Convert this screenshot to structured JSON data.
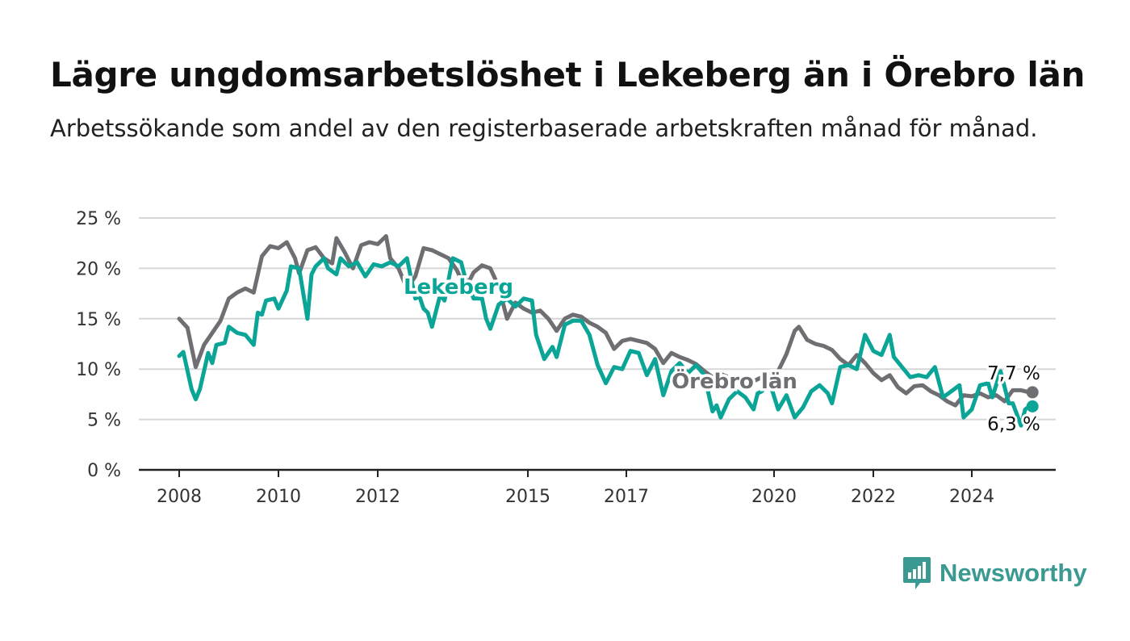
{
  "title": "Lägre ungdomsarbetslöshet i Lekeberg än i Örebro län",
  "subtitle": "Arbetssökande som andel av den registerbaserade arbetskraften månad för månad.",
  "brand": {
    "name": "Newsworthy",
    "icon": "newsworthy-logo-icon",
    "color": "#3a9a92"
  },
  "chart_data": {
    "type": "line",
    "title": "Lägre ungdomsarbetslöshet i Lekeberg än i Örebro län",
    "ylabel": "",
    "ylim": [
      0,
      25
    ],
    "y_ticks": [
      0,
      5,
      10,
      15,
      20,
      25
    ],
    "y_tick_labels": [
      "0 %",
      "5 %",
      "10 %",
      "15 %",
      "20 %",
      "25 %"
    ],
    "x_ticks": [
      "2008",
      "2010",
      "2012",
      "2015",
      "2017",
      "2020",
      "2022",
      "2024"
    ],
    "grid": true,
    "series": [
      {
        "name": "Örebro län",
        "color": "#6e6e73",
        "end_label": "7,7 %",
        "points": [
          [
            "2008-01",
            15.0
          ],
          [
            "2008-03",
            14.1
          ],
          [
            "2008-05",
            10.2
          ],
          [
            "2008-07",
            12.4
          ],
          [
            "2008-09",
            13.6
          ],
          [
            "2008-11",
            14.8
          ],
          [
            "2009-01",
            17.0
          ],
          [
            "2009-03",
            17.6
          ],
          [
            "2009-05",
            18.0
          ],
          [
            "2009-07",
            17.6
          ],
          [
            "2009-09",
            21.2
          ],
          [
            "2009-11",
            22.2
          ],
          [
            "2010-01",
            22.0
          ],
          [
            "2010-03",
            22.6
          ],
          [
            "2010-05",
            21.0
          ],
          [
            "2010-06",
            19.5
          ],
          [
            "2010-08",
            21.8
          ],
          [
            "2010-10",
            22.1
          ],
          [
            "2010-12",
            21.0
          ],
          [
            "2011-02",
            20.5
          ],
          [
            "2011-03",
            23.0
          ],
          [
            "2011-05",
            21.6
          ],
          [
            "2011-07",
            20.0
          ],
          [
            "2011-09",
            22.3
          ],
          [
            "2011-11",
            22.6
          ],
          [
            "2012-01",
            22.4
          ],
          [
            "2012-03",
            23.2
          ],
          [
            "2012-04",
            21.0
          ],
          [
            "2012-06",
            20.0
          ],
          [
            "2012-08",
            18.0
          ],
          [
            "2012-10",
            19.2
          ],
          [
            "2012-12",
            22.0
          ],
          [
            "2013-02",
            21.8
          ],
          [
            "2013-04",
            21.4
          ],
          [
            "2013-06",
            21.0
          ],
          [
            "2013-08",
            19.8
          ],
          [
            "2013-10",
            18.0
          ],
          [
            "2013-12",
            19.6
          ],
          [
            "2014-02",
            20.3
          ],
          [
            "2014-04",
            20.0
          ],
          [
            "2014-06",
            18.2
          ],
          [
            "2014-08",
            15.0
          ],
          [
            "2014-10",
            16.6
          ],
          [
            "2014-12",
            16.0
          ],
          [
            "2015-02",
            15.6
          ],
          [
            "2015-04",
            15.8
          ],
          [
            "2015-06",
            15.0
          ],
          [
            "2015-08",
            13.8
          ],
          [
            "2015-10",
            15.0
          ],
          [
            "2015-12",
            15.4
          ],
          [
            "2016-02",
            15.2
          ],
          [
            "2016-04",
            14.6
          ],
          [
            "2016-06",
            14.2
          ],
          [
            "2016-08",
            13.6
          ],
          [
            "2016-10",
            12.0
          ],
          [
            "2016-12",
            12.8
          ],
          [
            "2017-02",
            13.0
          ],
          [
            "2017-04",
            12.8
          ],
          [
            "2017-06",
            12.6
          ],
          [
            "2017-08",
            12.0
          ],
          [
            "2017-10",
            10.6
          ],
          [
            "2017-12",
            11.6
          ],
          [
            "2018-02",
            11.2
          ],
          [
            "2018-04",
            10.9
          ],
          [
            "2018-06",
            10.5
          ],
          [
            "2018-08",
            9.8
          ],
          [
            "2018-10",
            9.2
          ],
          [
            "2018-12",
            9.5
          ],
          [
            "2019-02",
            9.2
          ],
          [
            "2019-04",
            8.9
          ],
          [
            "2019-06",
            8.6
          ],
          [
            "2019-08",
            8.8
          ],
          [
            "2019-10",
            9.2
          ],
          [
            "2019-12",
            9.4
          ],
          [
            "2020-02",
            9.8
          ],
          [
            "2020-04",
            11.5
          ],
          [
            "2020-06",
            13.8
          ],
          [
            "2020-07",
            14.2
          ],
          [
            "2020-09",
            12.9
          ],
          [
            "2020-11",
            12.5
          ],
          [
            "2021-01",
            12.3
          ],
          [
            "2021-03",
            11.9
          ],
          [
            "2021-05",
            11.0
          ],
          [
            "2021-07",
            10.4
          ],
          [
            "2021-09",
            11.4
          ],
          [
            "2021-11",
            10.6
          ],
          [
            "2022-01",
            9.6
          ],
          [
            "2022-03",
            8.9
          ],
          [
            "2022-05",
            9.4
          ],
          [
            "2022-07",
            8.2
          ],
          [
            "2022-09",
            7.6
          ],
          [
            "2022-11",
            8.3
          ],
          [
            "2023-01",
            8.4
          ],
          [
            "2023-03",
            7.8
          ],
          [
            "2023-05",
            7.4
          ],
          [
            "2023-07",
            6.8
          ],
          [
            "2023-09",
            6.4
          ],
          [
            "2023-11",
            7.4
          ],
          [
            "2024-01",
            7.3
          ],
          [
            "2024-03",
            7.6
          ],
          [
            "2024-05",
            7.2
          ],
          [
            "2024-07",
            7.4
          ],
          [
            "2024-09",
            6.8
          ],
          [
            "2024-11",
            7.9
          ],
          [
            "2025-01",
            7.9
          ],
          [
            "2025-03",
            7.7
          ]
        ]
      },
      {
        "name": "Lekeberg",
        "color": "#0aa597",
        "end_label": "6,3 %",
        "points": [
          [
            "2008-01",
            11.3
          ],
          [
            "2008-02",
            11.7
          ],
          [
            "2008-04",
            8.0
          ],
          [
            "2008-05",
            7.0
          ],
          [
            "2008-06",
            8.0
          ],
          [
            "2008-08",
            11.6
          ],
          [
            "2008-09",
            10.6
          ],
          [
            "2008-10",
            12.4
          ],
          [
            "2008-12",
            12.6
          ],
          [
            "2009-01",
            14.2
          ],
          [
            "2009-03",
            13.6
          ],
          [
            "2009-05",
            13.4
          ],
          [
            "2009-07",
            12.4
          ],
          [
            "2009-08",
            15.6
          ],
          [
            "2009-09",
            15.4
          ],
          [
            "2009-10",
            16.8
          ],
          [
            "2009-12",
            17.0
          ],
          [
            "2010-01",
            16.0
          ],
          [
            "2010-03",
            17.8
          ],
          [
            "2010-04",
            20.2
          ],
          [
            "2010-06",
            20.0
          ],
          [
            "2010-08",
            15.0
          ],
          [
            "2010-09",
            19.4
          ],
          [
            "2010-10",
            20.2
          ],
          [
            "2010-12",
            21.0
          ],
          [
            "2011-01",
            20.0
          ],
          [
            "2011-03",
            19.4
          ],
          [
            "2011-04",
            21.0
          ],
          [
            "2011-06",
            20.2
          ],
          [
            "2011-08",
            20.6
          ],
          [
            "2011-10",
            19.2
          ],
          [
            "2011-12",
            20.4
          ],
          [
            "2012-02",
            20.2
          ],
          [
            "2012-04",
            20.6
          ],
          [
            "2012-06",
            20.2
          ],
          [
            "2012-08",
            21.0
          ],
          [
            "2012-10",
            17.0
          ],
          [
            "2012-11",
            17.2
          ],
          [
            "2012-12",
            16.0
          ],
          [
            "2013-01",
            15.6
          ],
          [
            "2013-02",
            14.2
          ],
          [
            "2013-04",
            17.4
          ],
          [
            "2013-05",
            16.8
          ],
          [
            "2013-07",
            21.0
          ],
          [
            "2013-09",
            20.6
          ],
          [
            "2013-10",
            19.0
          ],
          [
            "2013-12",
            17.0
          ],
          [
            "2014-02",
            17.0
          ],
          [
            "2014-03",
            15.0
          ],
          [
            "2014-04",
            14.0
          ],
          [
            "2014-06",
            16.4
          ],
          [
            "2014-08",
            17.0
          ],
          [
            "2014-10",
            16.2
          ],
          [
            "2014-12",
            17.0
          ],
          [
            "2015-02",
            16.8
          ],
          [
            "2015-03",
            13.4
          ],
          [
            "2015-05",
            11.0
          ],
          [
            "2015-07",
            12.2
          ],
          [
            "2015-08",
            11.2
          ],
          [
            "2015-10",
            14.4
          ],
          [
            "2015-12",
            14.8
          ],
          [
            "2016-02",
            14.8
          ],
          [
            "2016-04",
            13.4
          ],
          [
            "2016-06",
            10.4
          ],
          [
            "2016-08",
            8.6
          ],
          [
            "2016-10",
            10.2
          ],
          [
            "2016-12",
            10.0
          ],
          [
            "2017-02",
            11.8
          ],
          [
            "2017-04",
            11.6
          ],
          [
            "2017-06",
            9.4
          ],
          [
            "2017-08",
            11.0
          ],
          [
            "2017-10",
            7.4
          ],
          [
            "2017-12",
            9.8
          ],
          [
            "2018-02",
            10.6
          ],
          [
            "2018-04",
            9.6
          ],
          [
            "2018-06",
            10.4
          ],
          [
            "2018-08",
            9.4
          ],
          [
            "2018-10",
            5.8
          ],
          [
            "2018-11",
            6.4
          ],
          [
            "2018-12",
            5.2
          ],
          [
            "2019-02",
            7.0
          ],
          [
            "2019-04",
            7.8
          ],
          [
            "2019-06",
            7.2
          ],
          [
            "2019-08",
            6.0
          ],
          [
            "2019-09",
            7.6
          ],
          [
            "2019-10",
            7.8
          ],
          [
            "2019-12",
            8.6
          ],
          [
            "2020-02",
            6.0
          ],
          [
            "2020-04",
            7.4
          ],
          [
            "2020-06",
            5.2
          ],
          [
            "2020-08",
            6.2
          ],
          [
            "2020-10",
            7.8
          ],
          [
            "2020-12",
            8.4
          ],
          [
            "2021-02",
            7.6
          ],
          [
            "2021-03",
            6.6
          ],
          [
            "2021-05",
            10.2
          ],
          [
            "2021-07",
            10.4
          ],
          [
            "2021-09",
            10.0
          ],
          [
            "2021-11",
            13.4
          ],
          [
            "2022-01",
            11.8
          ],
          [
            "2022-03",
            11.4
          ],
          [
            "2022-05",
            13.4
          ],
          [
            "2022-06",
            11.2
          ],
          [
            "2022-08",
            10.2
          ],
          [
            "2022-10",
            9.2
          ],
          [
            "2022-12",
            9.4
          ],
          [
            "2023-02",
            9.2
          ],
          [
            "2023-04",
            10.2
          ],
          [
            "2023-06",
            7.2
          ],
          [
            "2023-08",
            7.8
          ],
          [
            "2023-10",
            8.4
          ],
          [
            "2023-11",
            5.2
          ],
          [
            "2024-01",
            6.0
          ],
          [
            "2024-03",
            8.4
          ],
          [
            "2024-05",
            8.6
          ],
          [
            "2024-06",
            7.2
          ],
          [
            "2024-08",
            9.8
          ],
          [
            "2024-10",
            6.6
          ],
          [
            "2024-11",
            6.6
          ],
          [
            "2025-01",
            4.4
          ],
          [
            "2025-02",
            6.0
          ],
          [
            "2025-03",
            6.3
          ]
        ]
      }
    ],
    "annotations": [
      {
        "text": "Lekeberg",
        "series": "Lekeberg",
        "at": [
          "2013-01",
          18.0
        ]
      },
      {
        "text": "Örebro län",
        "series": "Örebro län",
        "at": [
          "2020-01",
          8.8
        ]
      }
    ]
  }
}
